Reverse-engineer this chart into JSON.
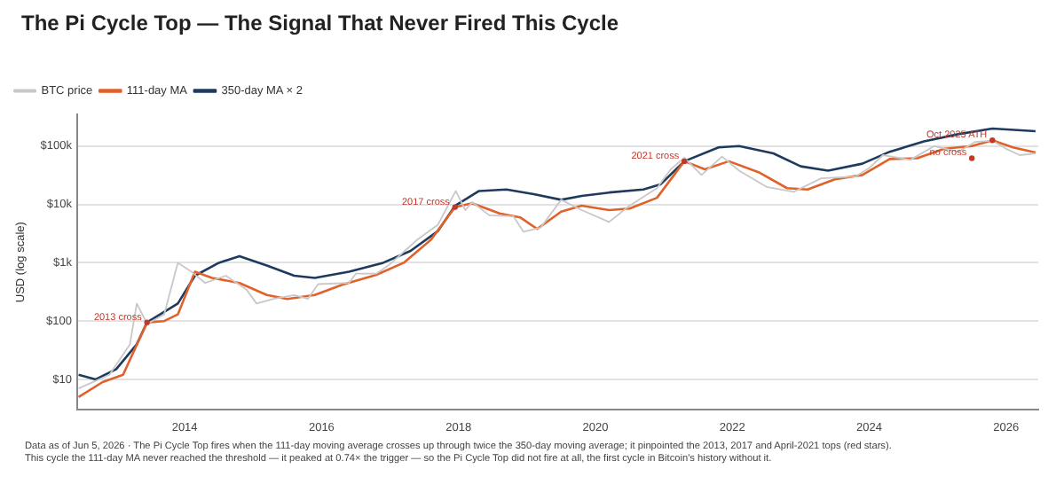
{
  "chart_data": {
    "type": "line",
    "title": "The Pi Cycle Top — The Signal That Never Fired This Cycle",
    "ylabel": "USD (log scale)",
    "log": "y",
    "grid": "y",
    "legend": "top left",
    "marker": "none",
    "line_style": "solid",
    "xlim": [
      2012.43,
      2026.47
    ],
    "xticks": [
      2014,
      2016,
      2018,
      2020,
      2022,
      2024,
      2026
    ],
    "ylim": [
      3,
      350000
    ],
    "yticks": [
      {
        "value": 10,
        "label": "$10"
      },
      {
        "value": 100,
        "label": "$100"
      },
      {
        "value": 1000,
        "label": "$1k"
      },
      {
        "value": 10000,
        "label": "$10k"
      },
      {
        "value": 100000,
        "label": "$100k"
      }
    ],
    "series": [
      {
        "name": "BTC price",
        "color": "#c8c8c8",
        "x": [
          2012.45,
          2012.9,
          2013.2,
          2013.3,
          2013.45,
          2013.7,
          2013.9,
          2014.1,
          2014.3,
          2014.6,
          2014.9,
          2015.05,
          2015.3,
          2015.6,
          2015.8,
          2015.95,
          2016.4,
          2016.5,
          2016.8,
          2017.0,
          2017.4,
          2017.7,
          2017.96,
          2018.1,
          2018.2,
          2018.45,
          2018.8,
          2018.95,
          2019.2,
          2019.5,
          2019.8,
          2020.2,
          2020.5,
          2020.9,
          2021.1,
          2021.3,
          2021.55,
          2021.85,
          2022.1,
          2022.5,
          2022.9,
          2023.3,
          2023.8,
          2024.0,
          2024.2,
          2024.6,
          2024.95,
          2025.3,
          2025.55,
          2025.8,
          2026.0,
          2026.2,
          2026.43
        ],
        "values": [
          7,
          12,
          40,
          200,
          90,
          130,
          1000,
          700,
          450,
          600,
          350,
          200,
          240,
          280,
          240,
          430,
          450,
          650,
          650,
          950,
          2500,
          4500,
          17000,
          8000,
          11000,
          6500,
          6300,
          3400,
          4000,
          12000,
          8000,
          5000,
          9500,
          19000,
          40000,
          63000,
          32000,
          66000,
          38000,
          20000,
          16500,
          28000,
          30000,
          42000,
          70000,
          58000,
          100000,
          80000,
          118000,
          124000,
          90000,
          70000,
          75000
        ]
      },
      {
        "name": "111-day MA",
        "color": "#e0622a",
        "x": [
          2012.45,
          2012.8,
          2013.1,
          2013.45,
          2013.7,
          2013.9,
          2014.15,
          2014.4,
          2014.8,
          2015.2,
          2015.5,
          2015.9,
          2016.3,
          2016.8,
          2017.2,
          2017.6,
          2017.95,
          2018.2,
          2018.6,
          2018.9,
          2019.15,
          2019.5,
          2019.8,
          2020.2,
          2020.5,
          2020.9,
          2021.3,
          2021.6,
          2021.95,
          2022.4,
          2022.8,
          2023.1,
          2023.5,
          2023.9,
          2024.3,
          2024.7,
          2025.1,
          2025.5,
          2025.8,
          2026.1,
          2026.43
        ],
        "values": [
          5,
          9,
          12,
          95,
          100,
          130,
          700,
          550,
          450,
          280,
          240,
          280,
          420,
          620,
          1000,
          2500,
          9000,
          10500,
          7000,
          6000,
          3800,
          7500,
          9500,
          8000,
          8500,
          13000,
          55000,
          40000,
          55000,
          35000,
          19000,
          18000,
          27000,
          32000,
          60000,
          62000,
          90000,
          100000,
          126000,
          95000,
          78000
        ]
      },
      {
        "name": "350-day MA × 2",
        "color": "#1f3a5f",
        "x": [
          2012.45,
          2012.7,
          2013.0,
          2013.3,
          2013.45,
          2013.9,
          2014.15,
          2014.5,
          2014.8,
          2015.2,
          2015.6,
          2015.9,
          2016.4,
          2016.9,
          2017.3,
          2017.7,
          2017.95,
          2018.3,
          2018.7,
          2019.1,
          2019.5,
          2019.8,
          2020.2,
          2020.7,
          2020.95,
          2021.3,
          2021.8,
          2022.1,
          2022.6,
          2023.0,
          2023.4,
          2023.9,
          2024.3,
          2024.8,
          2025.3,
          2025.8,
          2026.43
        ],
        "values": [
          12,
          10,
          15,
          40,
          95,
          200,
          600,
          1000,
          1300,
          900,
          600,
          550,
          700,
          1000,
          1600,
          3500,
          9500,
          17000,
          18000,
          15000,
          12000,
          14000,
          16000,
          18000,
          22000,
          55000,
          95000,
          100000,
          75000,
          45000,
          38000,
          50000,
          80000,
          120000,
          160000,
          200000,
          180000
        ]
      }
    ],
    "annotations": [
      {
        "text": "2013 cross",
        "x": 2013.45,
        "y": 95
      },
      {
        "text": "2017 cross",
        "x": 2017.95,
        "y": 9000
      },
      {
        "text": "2021 cross",
        "x": 2021.3,
        "y": 55000
      },
      {
        "text": "Oct 2025 ATH",
        "x": 2025.8,
        "y": 126000
      },
      {
        "text": "no cross",
        "x": 2025.5,
        "y": 62000
      },
      "Data as of Jun 5, 2026 · The Pi Cycle Top fires when the 111-day moving average crosses up through twice the 350-day moving average; it pinpointed the 2013, 2017 and April-2021 tops (red stars). This cycle the 111-day MA never reached the threshold — it peaked at 0.74× the trigger — so the Pi Cycle Top did not fire at all, the first cycle in Bitcoin's history without it."
    ]
  }
}
